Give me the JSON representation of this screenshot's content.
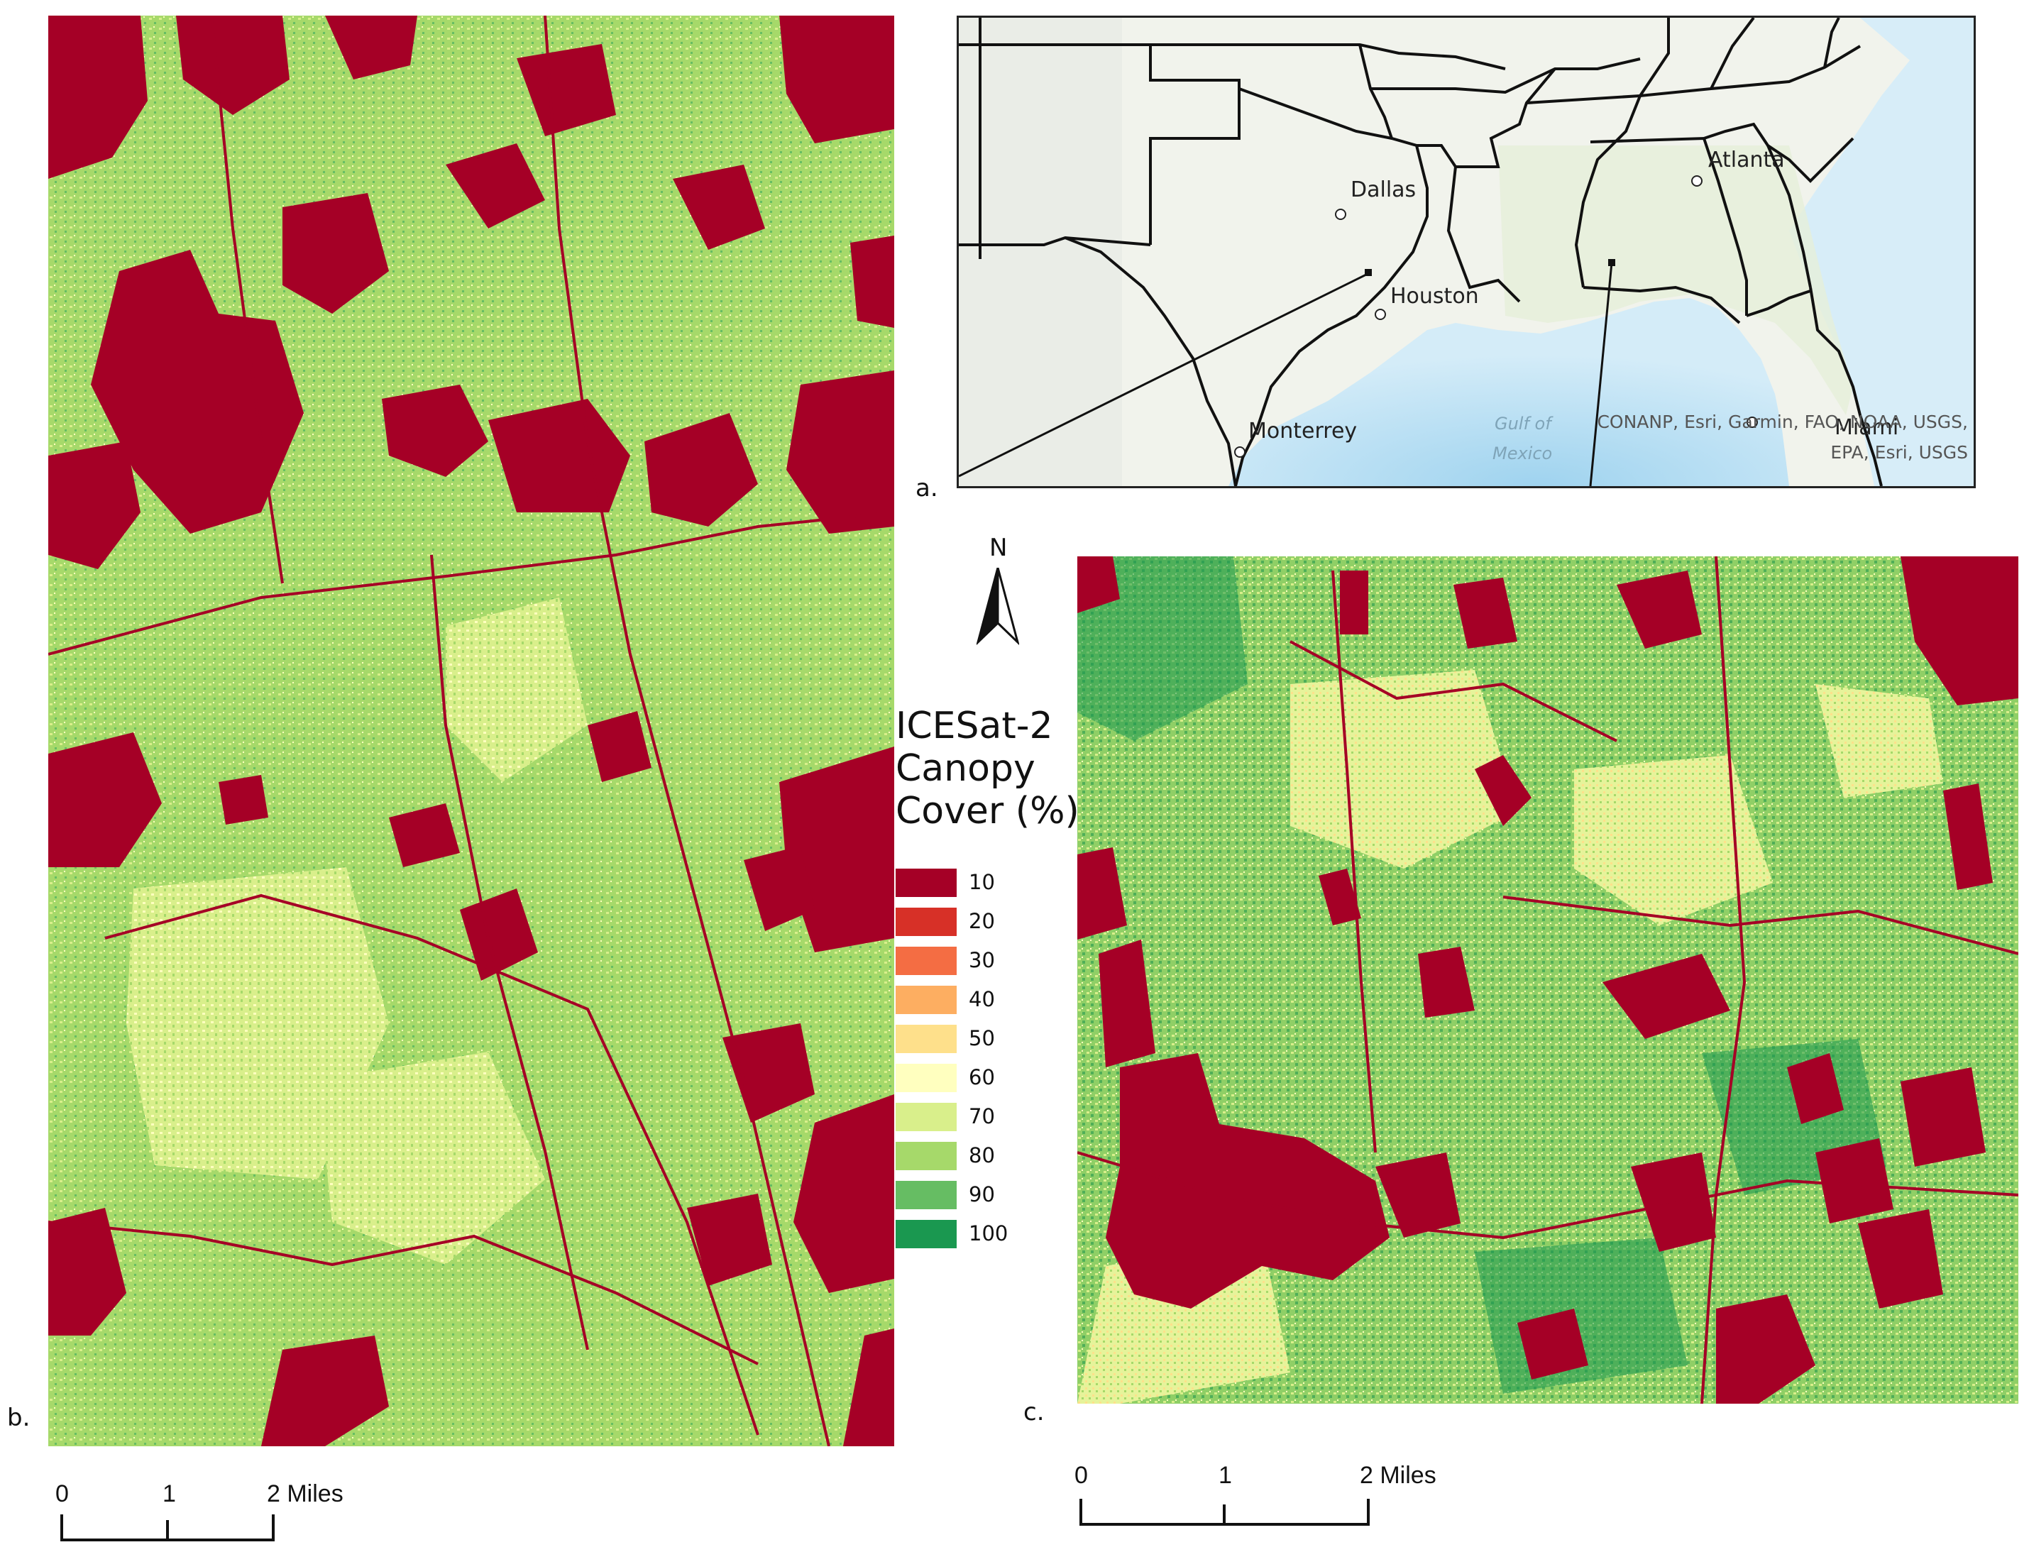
{
  "panels": {
    "a": "a.",
    "b": "b.",
    "c": "c."
  },
  "inset_map": {
    "cities": [
      {
        "name": "Dallas"
      },
      {
        "name": "Houston"
      },
      {
        "name": "Atlanta"
      },
      {
        "name": "Monterrey"
      },
      {
        "name": "Miami"
      }
    ],
    "water_label_1": "Gulf of",
    "water_label_2": "Mexico",
    "attribution_1": "CONANP, Esri, Garmin, FAO, NOAA, USGS,",
    "attribution_2": "EPA, Esri, USGS",
    "colors": {
      "land": "#eef2e6",
      "water": "#cfe9f6",
      "deep_water": "#a9d8f0",
      "borders": "#111111"
    }
  },
  "north_arrow": {
    "label": "N"
  },
  "legend": {
    "title_1": "ICESat-2",
    "title_2": "Canopy",
    "title_3": "Cover (%)",
    "items": [
      {
        "label": "10",
        "color": "#a50026"
      },
      {
        "label": "20",
        "color": "#d73027"
      },
      {
        "label": "30",
        "color": "#f46d43"
      },
      {
        "label": "40",
        "color": "#fdae61"
      },
      {
        "label": "50",
        "color": "#fee08b"
      },
      {
        "label": "60",
        "color": "#ffffbf"
      },
      {
        "label": "70",
        "color": "#d9ef8b"
      },
      {
        "label": "80",
        "color": "#a6d96a"
      },
      {
        "label": "90",
        "color": "#66bd63"
      },
      {
        "label": "100",
        "color": "#1a9850"
      }
    ]
  },
  "scale_bar_b": {
    "labels": [
      "0",
      "1",
      "2 Miles"
    ]
  },
  "scale_bar_c": {
    "labels": [
      "0",
      "1",
      "2 Miles"
    ]
  }
}
